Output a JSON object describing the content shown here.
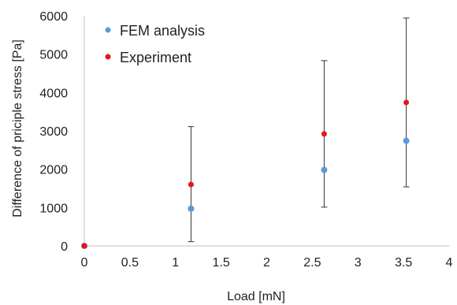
{
  "chart_data": {
    "type": "scatter",
    "xlabel": "Load [mN]",
    "ylabel": "Difference of priciple stress [Pa]",
    "xlim": [
      0,
      4
    ],
    "ylim": [
      0,
      6000
    ],
    "x_ticks": [
      "0",
      "0.5",
      "1",
      "1.5",
      "2",
      "2.5",
      "3",
      "3.5",
      "4"
    ],
    "y_ticks": [
      "0",
      "1000",
      "2000",
      "3000",
      "4000",
      "5000",
      "6000"
    ],
    "grid": false,
    "legend_position": "top-left",
    "series": [
      {
        "name": "FEM analysis",
        "color": "#5b9bd5",
        "points": [
          {
            "x": 0,
            "y": 0
          },
          {
            "x": 1.17,
            "y": 970
          },
          {
            "x": 2.63,
            "y": 1980
          },
          {
            "x": 3.53,
            "y": 2740
          }
        ]
      },
      {
        "name": "Experiment",
        "color": "#e8141b",
        "points": [
          {
            "x": 0,
            "y": 0
          },
          {
            "x": 1.17,
            "y": 1600,
            "err_low": 110,
            "err_high": 3110
          },
          {
            "x": 2.63,
            "y": 2920,
            "err_low": 1010,
            "err_high": 4830
          },
          {
            "x": 3.53,
            "y": 3740,
            "err_low": 1540,
            "err_high": 5940
          }
        ]
      }
    ]
  }
}
